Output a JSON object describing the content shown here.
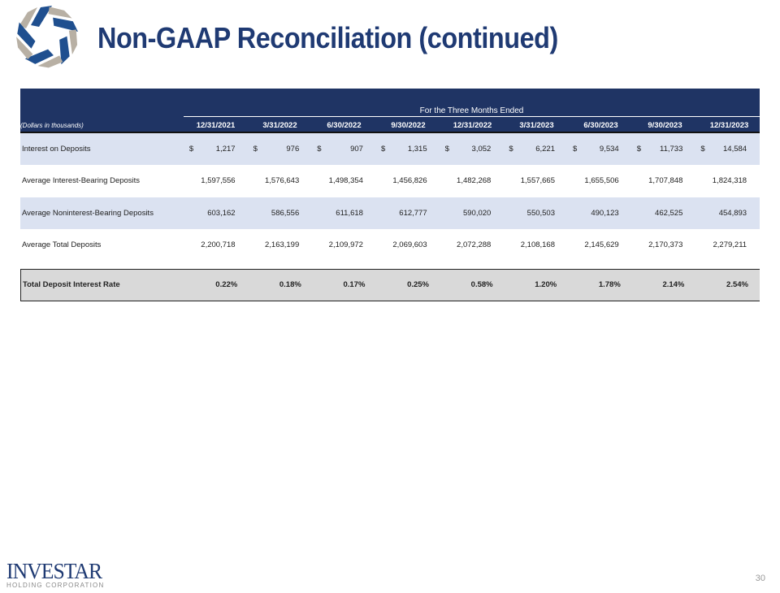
{
  "header": {
    "title": "Non-GAAP Reconciliation (continued)"
  },
  "table": {
    "period_label": "For the Three Months Ended",
    "units_label": "(Dollars in thousands)",
    "columns": [
      "12/31/2021",
      "3/31/2022",
      "6/30/2022",
      "9/30/2022",
      "12/31/2022",
      "3/31/2023",
      "6/30/2023",
      "9/30/2023",
      "12/31/2023"
    ],
    "rows": [
      {
        "label": "Interest on Deposits",
        "currency": "$",
        "values": [
          "1,217",
          "976",
          "907",
          "1,315",
          "3,052",
          "6,221",
          "9,534",
          "11,733",
          "14,584"
        ]
      },
      {
        "label": "Average Interest-Bearing Deposits",
        "currency": "",
        "values": [
          "1,597,556",
          "1,576,643",
          "1,498,354",
          "1,456,826",
          "1,482,268",
          "1,557,665",
          "1,655,506",
          "1,707,848",
          "1,824,318"
        ]
      },
      {
        "label": "Average Noninterest-Bearing Deposits",
        "currency": "",
        "values": [
          "603,162",
          "586,556",
          "611,618",
          "612,777",
          "590,020",
          "550,503",
          "490,123",
          "462,525",
          "454,893"
        ]
      },
      {
        "label": "Average Total Deposits",
        "currency": "",
        "values": [
          "2,200,718",
          "2,163,199",
          "2,109,972",
          "2,069,603",
          "2,072,288",
          "2,108,168",
          "2,145,629",
          "2,170,373",
          "2,279,211"
        ]
      }
    ],
    "total": {
      "label": "Total Deposit Interest Rate",
      "values": [
        "0.22%",
        "0.18%",
        "0.17%",
        "0.25%",
        "0.58%",
        "1.20%",
        "1.78%",
        "2.14%",
        "2.54%"
      ]
    }
  },
  "footer": {
    "brand": "INVESTAR",
    "brand_sub": "HOLDING CORPORATION",
    "page_number": "30"
  },
  "colors": {
    "header_bg": "#1f3464",
    "alt_row": "#dbe2f1",
    "total_bg": "#d9d9d9",
    "title": "#1f3a73"
  }
}
